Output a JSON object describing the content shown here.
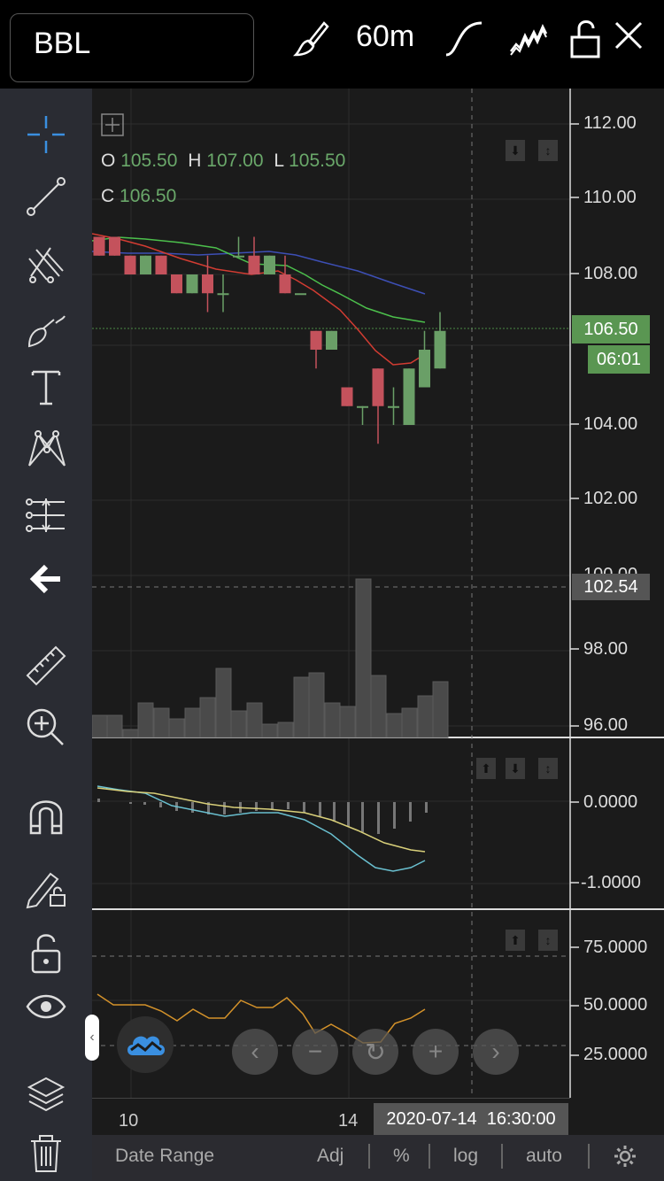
{
  "header": {
    "symbol": "BBL",
    "interval": "60m",
    "icons": [
      "brush-icon",
      "curve-icon",
      "multi-line-icon",
      "unlock-icon",
      "close-icon"
    ]
  },
  "toolbar": {
    "icons": [
      "crosshair-icon",
      "trendline-icon",
      "fork-icon",
      "brush-draw-icon",
      "text-icon",
      "pattern-icon",
      "fib-icon",
      "back-arrow-icon",
      "ruler-icon",
      "zoom-in-icon",
      "magnet-icon",
      "lock-pencil-icon",
      "lock-icon",
      "eye-icon",
      "layers-icon",
      "trash-icon"
    ]
  },
  "ohlc": {
    "o_label": "O",
    "o": "105.50",
    "h_label": "H",
    "h": "107.00",
    "l_label": "L",
    "l": "105.50",
    "c_label": "C",
    "c": "106.50"
  },
  "price_axis": {
    "ticks": [
      "112.00",
      "110.00",
      "108.00",
      "106.50",
      "104.00",
      "102.00",
      "100.00",
      "98.00",
      "96.00"
    ],
    "last_price": "106.50",
    "countdown": "06:01",
    "crosshair_price": "102.54"
  },
  "macd_axis": {
    "ticks": [
      "0.0000",
      "-1.0000"
    ]
  },
  "rsi_axis": {
    "ticks": [
      "75.0000",
      "50.0000",
      "25.0000"
    ]
  },
  "time_axis": {
    "ticks": [
      "10",
      "14"
    ],
    "crosshair_time": "2020-07-14  16:30:00"
  },
  "bottom_bar": {
    "date_range": "Date Range",
    "adj": "Adj",
    "percent": "%",
    "log": "log",
    "auto": "auto"
  },
  "colors": {
    "up": "#6a9f67",
    "down": "#c4525c",
    "ma_fast": "#d23c32",
    "ma_mid": "#4cc04c",
    "ma_slow": "#3d4fb5",
    "macd": "#6ac0d0",
    "signal": "#d9d07a",
    "rsi": "#d4922a"
  },
  "chart_data": {
    "type": "candlestick",
    "candles": [
      {
        "o": 109.0,
        "h": 109.0,
        "l": 108.5,
        "c": 108.5
      },
      {
        "o": 109.0,
        "h": 109.0,
        "l": 108.5,
        "c": 108.5
      },
      {
        "o": 108.5,
        "h": 108.5,
        "l": 108.0,
        "c": 108.0
      },
      {
        "o": 108.0,
        "h": 108.5,
        "l": 108.0,
        "c": 108.5
      },
      {
        "o": 108.5,
        "h": 108.5,
        "l": 108.0,
        "c": 108.0
      },
      {
        "o": 108.0,
        "h": 108.0,
        "l": 107.5,
        "c": 107.5
      },
      {
        "o": 107.5,
        "h": 108.0,
        "l": 107.5,
        "c": 108.0
      },
      {
        "o": 108.0,
        "h": 108.5,
        "l": 107.0,
        "c": 107.5
      },
      {
        "o": 107.5,
        "h": 108.0,
        "l": 107.0,
        "c": 107.5
      },
      {
        "o": 108.5,
        "h": 109.0,
        "l": 108.5,
        "c": 108.5
      },
      {
        "o": 108.5,
        "h": 109.0,
        "l": 108.0,
        "c": 108.0
      },
      {
        "o": 108.0,
        "h": 108.5,
        "l": 108.0,
        "c": 108.5
      },
      {
        "o": 108.0,
        "h": 108.5,
        "l": 107.5,
        "c": 107.5
      },
      {
        "o": 107.5,
        "h": 107.5,
        "l": 107.5,
        "c": 107.5
      },
      {
        "o": 106.5,
        "h": 106.5,
        "l": 105.5,
        "c": 106.0
      },
      {
        "o": 106.0,
        "h": 106.5,
        "l": 106.0,
        "c": 106.5
      },
      {
        "o": 105.0,
        "h": 105.0,
        "l": 104.5,
        "c": 104.5
      },
      {
        "o": 104.5,
        "h": 104.5,
        "l": 104.0,
        "c": 104.5
      },
      {
        "o": 105.5,
        "h": 105.5,
        "l": 103.5,
        "c": 104.5
      },
      {
        "o": 104.5,
        "h": 105.0,
        "l": 104.0,
        "c": 104.5
      },
      {
        "o": 104.0,
        "h": 105.5,
        "l": 104.0,
        "c": 105.5
      },
      {
        "o": 105.0,
        "h": 106.5,
        "l": 105.0,
        "c": 106.0
      },
      {
        "o": 105.5,
        "h": 107.0,
        "l": 105.5,
        "c": 106.5
      }
    ]
  }
}
